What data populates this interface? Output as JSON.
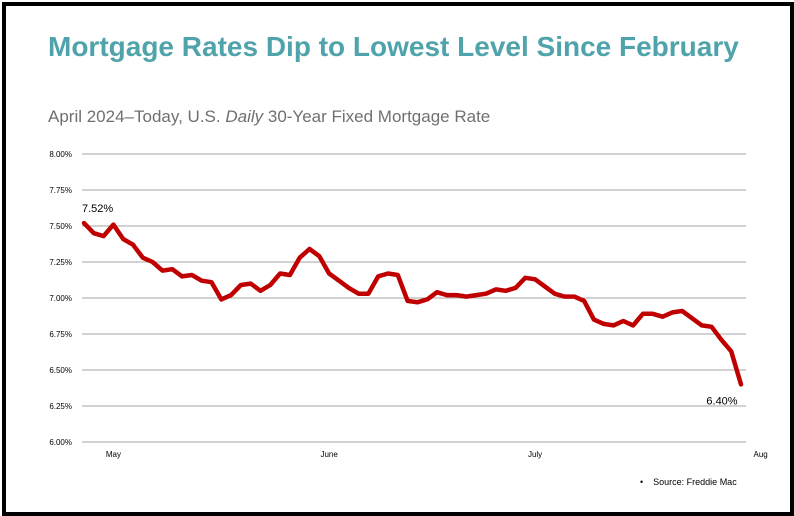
{
  "header": {
    "title": "Mortgage Rates Dip to Lowest Level Since February",
    "subtitle_pre": "April 2024–Today, U.S. ",
    "subtitle_em": "Daily",
    "subtitle_post": " 30-Year Fixed Mortgage Rate"
  },
  "footer": {
    "bullet": "•",
    "source": "Source: Freddie Mac"
  },
  "colors": {
    "title": "#4fa3ab",
    "line": "#c00000",
    "grid": "#a6a6a6",
    "text": "#000000"
  },
  "chart_data": {
    "type": "line",
    "title": "Mortgage Rates Dip to Lowest Level Since February",
    "subtitle": "April 2024–Today, U.S. Daily 30-Year Fixed Mortgage Rate",
    "xlabel": "",
    "ylabel": "",
    "ylim": [
      6.0,
      8.0
    ],
    "yticks": [
      "8.00%",
      "7.75%",
      "7.50%",
      "7.25%",
      "7.00%",
      "6.75%",
      "6.50%",
      "6.25%",
      "6.00%"
    ],
    "xticks": [
      {
        "label": "May",
        "index": 3
      },
      {
        "label": "June",
        "index": 25
      },
      {
        "label": "July",
        "index": 46
      },
      {
        "label": "Aug",
        "index": 69
      }
    ],
    "grid": true,
    "series": [
      {
        "name": "30-Year Fixed Mortgage Rate",
        "values": [
          7.52,
          7.45,
          7.43,
          7.51,
          7.41,
          7.37,
          7.28,
          7.25,
          7.19,
          7.2,
          7.15,
          7.16,
          7.12,
          7.11,
          6.99,
          7.02,
          7.09,
          7.1,
          7.05,
          7.09,
          7.17,
          7.16,
          7.28,
          7.34,
          7.29,
          7.17,
          7.12,
          7.07,
          7.03,
          7.03,
          7.15,
          7.17,
          7.16,
          6.98,
          6.97,
          6.99,
          7.04,
          7.02,
          7.02,
          7.01,
          7.02,
          7.03,
          7.06,
          7.05,
          7.07,
          7.14,
          7.13,
          7.08,
          7.03,
          7.01,
          7.01,
          6.98,
          6.85,
          6.82,
          6.81,
          6.84,
          6.81,
          6.89,
          6.89,
          6.87,
          6.9,
          6.91,
          6.86,
          6.81,
          6.8,
          6.71,
          6.63,
          6.4
        ]
      }
    ],
    "annotations": [
      {
        "text": "7.52%",
        "index": 0
      },
      {
        "text": "6.40%",
        "index": 67
      }
    ]
  }
}
